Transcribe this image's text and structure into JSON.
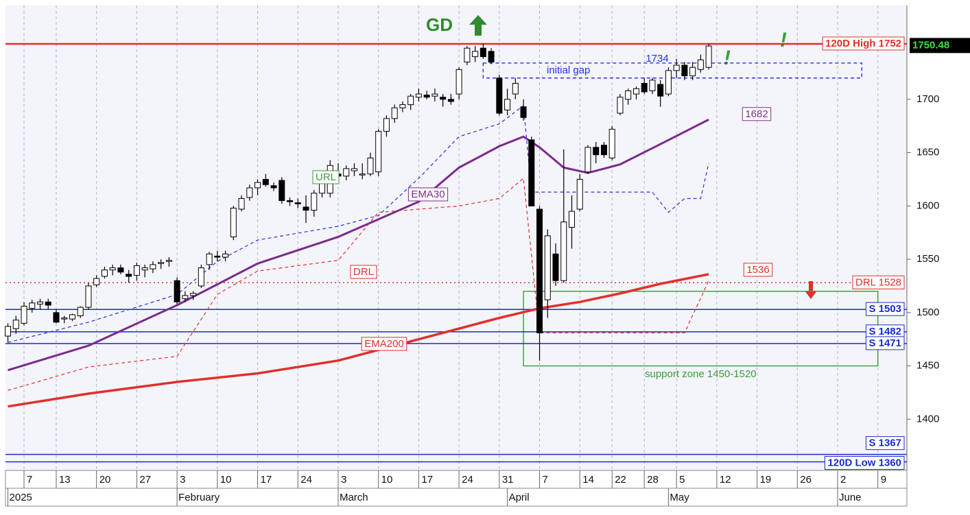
{
  "chart_data": {
    "type": "candlestick",
    "title": "GD",
    "signals": [
      "!",
      "!"
    ],
    "xlim": [
      -0.3,
      111.6
    ],
    "ylim": [
      1352,
      1788
    ],
    "yticks": [
      1400,
      1450,
      1500,
      1550,
      1600,
      1650,
      1700
    ],
    "xticks": [
      {
        "value": 2,
        "label": "7"
      },
      {
        "value": 6,
        "label": "13"
      },
      {
        "value": 11,
        "label": "20"
      },
      {
        "value": 16,
        "label": "27"
      },
      {
        "value": 21,
        "label": "3"
      },
      {
        "value": 26,
        "label": "10"
      },
      {
        "value": 31,
        "label": "17"
      },
      {
        "value": 36,
        "label": "24"
      },
      {
        "value": 41,
        "label": "3"
      },
      {
        "value": 46,
        "label": "10"
      },
      {
        "value": 51,
        "label": "17"
      },
      {
        "value": 56,
        "label": "24"
      },
      {
        "value": 61,
        "label": "31"
      },
      {
        "value": 66,
        "label": "7"
      },
      {
        "value": 71,
        "label": "14"
      },
      {
        "value": 75,
        "label": "22"
      },
      {
        "value": 79,
        "label": "28"
      },
      {
        "value": 83,
        "label": "5"
      },
      {
        "value": 88,
        "label": "12"
      },
      {
        "value": 93,
        "label": "19"
      },
      {
        "value": 98,
        "label": "26"
      },
      {
        "value": 103,
        "label": "2"
      },
      {
        "value": 108,
        "label": "9"
      }
    ],
    "months": [
      {
        "value": 0,
        "label": "2025"
      },
      {
        "value": 21,
        "label": "February"
      },
      {
        "value": 41,
        "label": "March"
      },
      {
        "value": 62,
        "label": "April"
      },
      {
        "value": 82,
        "label": "May"
      },
      {
        "value": 103,
        "label": "June"
      }
    ],
    "grid": true,
    "up_color": "#ffffff",
    "down_color": "#000000",
    "candles": {
      "x": [
        0,
        1,
        2,
        3,
        4,
        5,
        6,
        7,
        8,
        9,
        10,
        11,
        12,
        13,
        14,
        15,
        16,
        17,
        18,
        19,
        20,
        21,
        22,
        23,
        24,
        25,
        26,
        27,
        28,
        29,
        30,
        31,
        32,
        33,
        34,
        35,
        36,
        37,
        38,
        39,
        40,
        41,
        42,
        43,
        44,
        45,
        46,
        47,
        48,
        49,
        50,
        51,
        52,
        53,
        54,
        55,
        56,
        57,
        58,
        59,
        60,
        61,
        62,
        63,
        64,
        65,
        66,
        67,
        68,
        69,
        70,
        71,
        72,
        73,
        74,
        75,
        76,
        77,
        78,
        79,
        80,
        81,
        82,
        83,
        84,
        85,
        86,
        87
      ],
      "open": [
        1478,
        1485,
        1490,
        1504,
        1508,
        1510,
        1500,
        1494,
        1494,
        1497,
        1505,
        1526,
        1534,
        1540,
        1542,
        1536,
        1535,
        1540,
        1541,
        1546,
        1548,
        1530,
        1513,
        1516,
        1525,
        1545,
        1553,
        1552,
        1571,
        1597,
        1608,
        1617,
        1625,
        1619,
        1624,
        1605,
        1603,
        1599,
        1596,
        1612,
        1612,
        1630,
        1628,
        1633,
        1630,
        1630,
        1632,
        1670,
        1682,
        1692,
        1695,
        1702,
        1704,
        1703,
        1702,
        1700,
        1705,
        1735,
        1740,
        1748,
        1745,
        1720,
        1690,
        1705,
        1693,
        1662,
        1597,
        1512,
        1555,
        1530,
        1580,
        1597,
        1632,
        1655,
        1657,
        1645,
        1687,
        1700,
        1705,
        1715,
        1708,
        1714,
        1705,
        1727,
        1732,
        1722,
        1728,
        1730
      ],
      "high": [
        1490,
        1497,
        1510,
        1512,
        1513,
        1513,
        1503,
        1497,
        1499,
        1506,
        1528,
        1535,
        1543,
        1545,
        1545,
        1540,
        1547,
        1545,
        1548,
        1550,
        1552,
        1533,
        1520,
        1520,
        1545,
        1557,
        1558,
        1558,
        1600,
        1610,
        1620,
        1625,
        1630,
        1622,
        1627,
        1608,
        1607,
        1610,
        1615,
        1632,
        1643,
        1640,
        1638,
        1640,
        1640,
        1650,
        1672,
        1685,
        1695,
        1698,
        1705,
        1710,
        1708,
        1710,
        1705,
        1705,
        1730,
        1750,
        1750,
        1752,
        1748,
        1723,
        1710,
        1720,
        1700,
        1665,
        1600,
        1578,
        1565,
        1653,
        1610,
        1630,
        1657,
        1660,
        1660,
        1675,
        1705,
        1710,
        1712,
        1720,
        1720,
        1718,
        1730,
        1738,
        1735,
        1735,
        1742,
        1752
      ],
      "low": [
        1472,
        1480,
        1488,
        1500,
        1503,
        1503,
        1490,
        1490,
        1492,
        1495,
        1503,
        1524,
        1532,
        1535,
        1536,
        1528,
        1530,
        1533,
        1537,
        1541,
        1543,
        1508,
        1510,
        1512,
        1523,
        1540,
        1548,
        1548,
        1568,
        1595,
        1605,
        1610,
        1618,
        1614,
        1602,
        1600,
        1598,
        1584,
        1590,
        1608,
        1608,
        1622,
        1624,
        1628,
        1625,
        1628,
        1628,
        1665,
        1678,
        1688,
        1690,
        1698,
        1700,
        1698,
        1693,
        1695,
        1700,
        1732,
        1735,
        1738,
        1733,
        1685,
        1685,
        1700,
        1680,
        1600,
        1455,
        1495,
        1525,
        1528,
        1560,
        1595,
        1630,
        1640,
        1645,
        1643,
        1685,
        1695,
        1700,
        1705,
        1705,
        1693,
        1703,
        1720,
        1718,
        1718,
        1725,
        1728
      ],
      "close": [
        1487,
        1493,
        1506,
        1509,
        1510,
        1507,
        1491,
        1495,
        1498,
        1505,
        1525,
        1532,
        1540,
        1542,
        1538,
        1534,
        1544,
        1542,
        1545,
        1547,
        1549,
        1510,
        1516,
        1518,
        1542,
        1555,
        1552,
        1555,
        1598,
        1607,
        1617,
        1622,
        1620,
        1617,
        1605,
        1604,
        1602,
        1596,
        1612,
        1630,
        1638,
        1628,
        1635,
        1635,
        1630,
        1645,
        1670,
        1682,
        1692,
        1695,
        1703,
        1705,
        1702,
        1705,
        1700,
        1698,
        1728,
        1748,
        1745,
        1740,
        1735,
        1687,
        1700,
        1715,
        1683,
        1600,
        1481,
        1572,
        1530,
        1585,
        1595,
        1625,
        1655,
        1648,
        1648,
        1672,
        1702,
        1708,
        1710,
        1707,
        1718,
        1703,
        1727,
        1732,
        1722,
        1730,
        1737,
        1750
      ]
    },
    "lines": [
      {
        "name": "EMA30",
        "color": "#7b2a8c",
        "style": "solid",
        "width": 3,
        "x": [
          0,
          10,
          21,
          31,
          41,
          51,
          56,
          61,
          64,
          66,
          69,
          72,
          76,
          81,
          87
        ],
        "values": [
          1446,
          1469,
          1507,
          1546,
          1571,
          1604,
          1636,
          1656,
          1665,
          1655,
          1636,
          1631,
          1639,
          1658,
          1681
        ]
      },
      {
        "name": "EMA200",
        "color": "#e0302a",
        "style": "solid",
        "width": 3.5,
        "x": [
          0,
          10,
          21,
          31,
          41,
          51,
          61,
          66,
          71,
          76,
          81,
          87
        ],
        "values": [
          1412,
          1424,
          1435,
          1443,
          1455,
          1475,
          1495,
          1504,
          1510,
          1518,
          1527,
          1536
        ]
      },
      {
        "color": "#2233dd",
        "style": "dashed",
        "width": 1.2,
        "x": [
          0,
          10,
          21,
          26,
          31,
          41,
          46,
          51,
          56,
          61,
          64,
          65,
          72,
          80,
          82,
          84,
          86,
          87
        ],
        "values": [
          1472,
          1491,
          1517,
          1548,
          1568,
          1581,
          1591,
          1626,
          1665,
          1677,
          1694,
          1613,
          1613,
          1613,
          1594,
          1607,
          1607,
          1640
        ]
      },
      {
        "name": "DRL",
        "color": "#e0302a",
        "style": "dashed",
        "width": 1.2,
        "x": [
          0,
          10,
          21,
          26,
          31,
          41,
          46,
          56,
          61,
          64,
          66,
          84,
          87
        ],
        "values": [
          1427,
          1449,
          1459,
          1517,
          1539,
          1549,
          1594,
          1600,
          1607,
          1626,
          1481,
          1481,
          1530
        ]
      }
    ],
    "annotations": [
      {
        "text": "URL",
        "color": "#3a9a3a"
      }
    ],
    "value_notes": [
      {
        "value": 1734,
        "color": "#2233dd"
      },
      {
        "value": 1682,
        "color": "#7b2a8c"
      },
      {
        "value": 1536,
        "color": "#e0302a"
      }
    ],
    "levels": [
      {
        "label": "120D High 1752",
        "value": 1752,
        "color": "#e0302a",
        "style": "solid"
      },
      {
        "label": "DRL 1528",
        "value": 1528,
        "color": "#e0302a",
        "style": "dotted"
      },
      {
        "label": "S 1503",
        "value": 1503,
        "color": "#1a2ad0",
        "style": "solid"
      },
      {
        "label": "S 1482",
        "value": 1482,
        "color": "#1a2ad0",
        "style": "solid"
      },
      {
        "label": "S 1471",
        "value": 1471,
        "color": "#1a2ad0",
        "style": "solid"
      },
      {
        "label": "S 1367",
        "value": 1367,
        "color": "#1a2ad0",
        "style": "solid"
      },
      {
        "label": "120D Low 1360",
        "value": 1360,
        "color": "#1a2ad0",
        "style": "solid"
      }
    ],
    "zones": [
      {
        "label": "support zone 1450-1520",
        "low": 1450,
        "high": 1520,
        "x": [
          64,
          108
        ],
        "color": "#3a9a3a",
        "style": "solid"
      },
      {
        "label": "initial gap",
        "low": 1720,
        "high": 1734,
        "x": [
          59,
          106
        ],
        "color": "#2233dd",
        "style": "dashed"
      }
    ],
    "last_price": 1750.48
  }
}
